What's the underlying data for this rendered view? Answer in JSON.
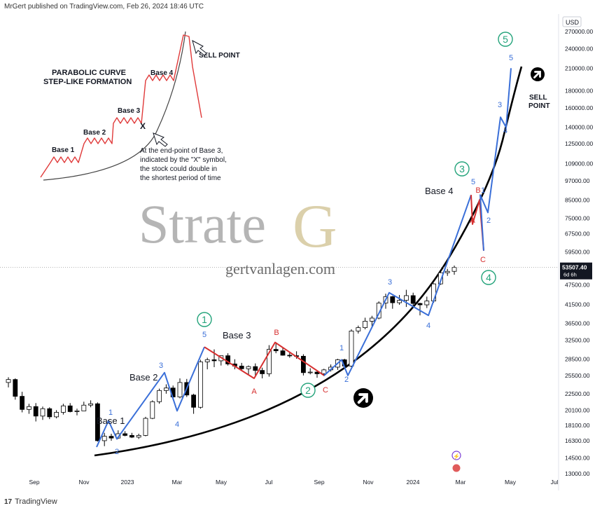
{
  "header": {
    "text": "MrGert published on TradingView.com, Feb 26, 2024 18:46 UTC"
  },
  "footer": {
    "logo": "17",
    "brand": "TradingView"
  },
  "axis": {
    "currency": "USD",
    "price_ticks": [
      "270000.00",
      "240000.00",
      "210000.00",
      "180000.00",
      "160000.00",
      "140000.00",
      "125000.00",
      "109000.00",
      "97000.00",
      "85000.00",
      "75000.00",
      "67500.00",
      "59500.00",
      "53507.40",
      "47500.00",
      "41500.00",
      "36500.00",
      "32500.00",
      "28500.00",
      "25500.00",
      "22500.00",
      "20100.00",
      "18100.00",
      "16300.00",
      "14500.00",
      "13000.00"
    ],
    "price_tick_values": [
      270000,
      240000,
      210000,
      180000,
      160000,
      140000,
      125000,
      109000,
      97000,
      85000,
      75000,
      67500,
      59500,
      53507.4,
      47500,
      41500,
      36500,
      32500,
      28500,
      25500,
      22500,
      20100,
      18100,
      16300,
      14500,
      13000
    ],
    "current_price": "53507.40",
    "current_countdown": "6d 6h",
    "time_ticks": [
      "Sep",
      "Nov",
      "2023",
      "Mar",
      "May",
      "Jul",
      "Sep",
      "Nov",
      "2024",
      "Mar",
      "May",
      "Jul"
    ]
  },
  "watermark": {
    "brand_text": "Strate",
    "brand_letter": "G",
    "website": "gertvanlagen.com"
  },
  "inset": {
    "title_line1": "PARABOLIC CURVE",
    "title_line2": "STEP-LIKE FORMATION",
    "sell_point": "SELL POINT",
    "marker_x": "X",
    "bases": [
      "Base 1",
      "Base 2",
      "Base 3",
      "Base 4"
    ],
    "note": [
      "At the end-point of Base 3,",
      "indicated by the \"X\" symbol,",
      "the stock could double in",
      "the shortest period of time"
    ]
  },
  "annotations": {
    "bases": [
      "Base 1",
      "Base 2",
      "Base 3",
      "Base 4"
    ],
    "sell_point": [
      "SELL",
      "POINT"
    ],
    "circled_waves": [
      "1",
      "2",
      "3",
      "4",
      "5"
    ],
    "sub_waves_blue": [
      "1",
      "2",
      "3",
      "4",
      "5"
    ],
    "abc_red": [
      "A",
      "B",
      "C"
    ]
  },
  "colors": {
    "up_wave": "#3a6fd8",
    "correction": "#d62f2f",
    "curve": "#000000",
    "circle": "#22a37a",
    "candle_up": "#ffffff",
    "candle_down": "#000000"
  },
  "chart_data": {
    "type": "candlestick",
    "title": "",
    "y_scale": "log",
    "ylim": [
      12500,
      300000
    ],
    "candles_weekly_approx": [
      [
        24300,
        25200,
        23500,
        24800
      ],
      [
        24800,
        25000,
        21600,
        22100
      ],
      [
        22100,
        22800,
        19800,
        20200
      ],
      [
        20200,
        21000,
        19600,
        20600
      ],
      [
        20600,
        21100,
        18600,
        19300
      ],
      [
        19300,
        20600,
        18800,
        20300
      ],
      [
        20300,
        20500,
        18900,
        19200
      ],
      [
        19200,
        20100,
        19000,
        19800
      ],
      [
        19800,
        21000,
        19500,
        20700
      ],
      [
        20700,
        21100,
        19800,
        19900
      ],
      [
        19900,
        20300,
        19400,
        20000
      ],
      [
        20000,
        21300,
        20000,
        20800
      ],
      [
        20800,
        21500,
        20500,
        21000
      ],
      [
        21000,
        21200,
        16200,
        16300
      ],
      [
        16300,
        17200,
        15700,
        16800
      ],
      [
        16800,
        17100,
        16300,
        16600
      ],
      [
        16600,
        17500,
        16500,
        17100
      ],
      [
        17100,
        17400,
        16800,
        16900
      ],
      [
        16900,
        17200,
        16600,
        16700
      ],
      [
        16700,
        17100,
        16500,
        16900
      ],
      [
        16900,
        19200,
        16800,
        19000
      ],
      [
        19000,
        21500,
        18900,
        21300
      ],
      [
        21300,
        23300,
        21000,
        23000
      ],
      [
        23000,
        24000,
        22500,
        23400
      ],
      [
        23400,
        23800,
        21600,
        22000
      ],
      [
        22000,
        25000,
        21800,
        24300
      ],
      [
        24300,
        24900,
        22000,
        22300
      ],
      [
        22300,
        22500,
        19600,
        20500
      ],
      [
        20500,
        28400,
        20300,
        28000
      ],
      [
        28000,
        28800,
        26600,
        28400
      ],
      [
        28400,
        30500,
        27000,
        28200
      ],
      [
        28200,
        29200,
        27300,
        29200
      ],
      [
        29200,
        29700,
        27300,
        27600
      ],
      [
        27600,
        28500,
        26600,
        27200
      ],
      [
        27200,
        27800,
        26500,
        26700
      ],
      [
        26700,
        27300,
        25700,
        27100
      ],
      [
        27100,
        27700,
        25300,
        26400
      ],
      [
        26400,
        26900,
        25000,
        25800
      ],
      [
        25800,
        31400,
        25300,
        30500
      ],
      [
        30500,
        31800,
        29700,
        30200
      ],
      [
        30200,
        31000,
        29200,
        29300
      ],
      [
        29300,
        29900,
        28800,
        29200
      ],
      [
        29200,
        30100,
        28600,
        29100
      ],
      [
        29100,
        29500,
        25500,
        26000
      ],
      [
        26000,
        26800,
        25700,
        26100
      ],
      [
        26100,
        26400,
        25100,
        25800
      ],
      [
        25800,
        26700,
        25400,
        26500
      ],
      [
        26500,
        27500,
        26200,
        27000
      ],
      [
        27000,
        28600,
        26500,
        28400
      ],
      [
        28400,
        28600,
        26700,
        27200
      ],
      [
        27200,
        35000,
        27000,
        34600
      ],
      [
        34600,
        35900,
        34000,
        35400
      ],
      [
        35400,
        37900,
        35000,
        37000
      ],
      [
        37000,
        38400,
        35600,
        37800
      ],
      [
        37800,
        42400,
        37500,
        41900
      ],
      [
        41900,
        44700,
        40300,
        43800
      ],
      [
        43800,
        44000,
        40300,
        42000
      ],
      [
        42000,
        44300,
        41400,
        42700
      ],
      [
        42700,
        45900,
        40800,
        44100
      ],
      [
        44100,
        45000,
        40500,
        41800
      ],
      [
        41800,
        42000,
        38500,
        41400
      ],
      [
        41400,
        43800,
        40500,
        42500
      ],
      [
        42500,
        48000,
        42000,
        47800
      ],
      [
        47800,
        52000,
        47500,
        51600
      ],
      [
        51600,
        53000,
        50500,
        52100
      ],
      [
        52100,
        54200,
        50900,
        53507
      ]
    ],
    "waves": {
      "up_wave_points": [
        {
          "label": "1",
          "price": 18700
        },
        {
          "label": "2",
          "price": 16500
        },
        {
          "label": "3",
          "price": 26000
        },
        {
          "label": "4",
          "price": 20000
        },
        {
          "label": "5",
          "price": 31000
        },
        {
          "label": "1",
          "price": 28400
        },
        {
          "label": "2",
          "price": 25500
        },
        {
          "label": "3",
          "price": 45000
        },
        {
          "label": "4",
          "price": 38500
        },
        {
          "label": "5",
          "price": 88000
        },
        {
          "label": "1",
          "price": 88000
        },
        {
          "label": "2",
          "price": 78000
        },
        {
          "label": "3",
          "price": 150000
        },
        {
          "label": "4",
          "price": 140000
        },
        {
          "label": "5",
          "price": 210000
        }
      ],
      "corrections": [
        {
          "label": "A",
          "price": 25000
        },
        {
          "label": "B",
          "price": 32000
        },
        {
          "label": "C",
          "price": 25500
        },
        {
          "label": "A",
          "price": 72000
        },
        {
          "label": "B",
          "price": 85000
        },
        {
          "label": "C",
          "price": 60000
        }
      ]
    }
  }
}
